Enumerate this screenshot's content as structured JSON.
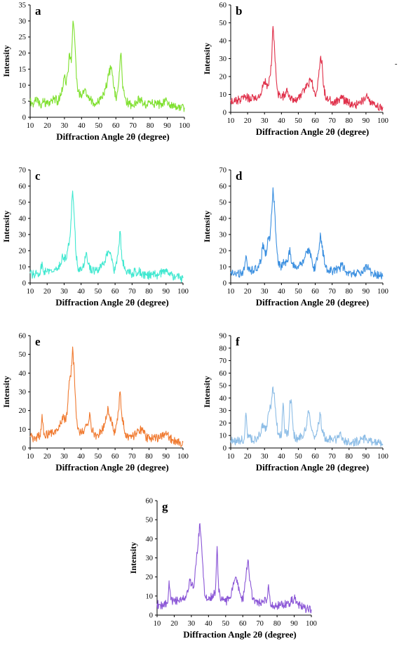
{
  "figure": {
    "side_mark": "-"
  },
  "chart_data": [
    {
      "id": "a",
      "panel_label": "a",
      "type": "line",
      "color": "#7fe02f",
      "xlabel": "Diffraction Angle 2θ (degree)",
      "ylabel": "Intensity",
      "xlim": [
        10,
        100
      ],
      "ylim": [
        0,
        35
      ],
      "xticks": [
        10,
        20,
        30,
        40,
        50,
        60,
        70,
        80,
        90,
        100
      ],
      "yticks": [
        0,
        5,
        10,
        15,
        20,
        25,
        30,
        35
      ],
      "x": [
        10,
        12,
        14,
        16,
        18,
        20,
        22,
        24,
        26,
        28,
        29,
        30,
        31,
        32,
        33,
        34,
        35,
        36,
        37,
        38,
        40,
        42,
        44,
        46,
        48,
        50,
        52,
        54,
        55,
        56,
        57,
        58,
        59,
        60,
        61,
        62,
        63,
        64,
        66,
        68,
        70,
        72,
        74,
        76,
        78,
        80,
        82,
        84,
        86,
        88,
        90,
        92,
        94,
        96,
        98,
        100
      ],
      "y": [
        5,
        4,
        6,
        4,
        5,
        4,
        5,
        6,
        5,
        7,
        9,
        13,
        10,
        14,
        20,
        17,
        30,
        24,
        12,
        8,
        6,
        9,
        6,
        5,
        4,
        5,
        6,
        9,
        11,
        14,
        15,
        13,
        9,
        6,
        8,
        14,
        20,
        9,
        5,
        4,
        4,
        5,
        6,
        4,
        4,
        5,
        4,
        4,
        4,
        5,
        5,
        4,
        4,
        3,
        3,
        3
      ]
    },
    {
      "id": "b",
      "panel_label": "b",
      "type": "line",
      "color": "#e0304a",
      "xlabel": "Diffraction Angle 2θ (degree)",
      "ylabel": "Intensity",
      "xlim": [
        10,
        100
      ],
      "ylim": [
        0,
        60
      ],
      "xticks": [
        10,
        20,
        30,
        40,
        50,
        60,
        70,
        80,
        90,
        100
      ],
      "yticks": [
        0,
        10,
        20,
        30,
        40,
        50,
        60
      ],
      "x": [
        10,
        12,
        14,
        16,
        18,
        20,
        22,
        24,
        26,
        28,
        29,
        30,
        31,
        32,
        33,
        34,
        35,
        36,
        37,
        38,
        40,
        42,
        43,
        44,
        46,
        48,
        50,
        52,
        54,
        55,
        56,
        57,
        58,
        59,
        60,
        61,
        62,
        63,
        64,
        65,
        66,
        68,
        70,
        72,
        74,
        76,
        78,
        80,
        82,
        84,
        86,
        88,
        89,
        90,
        92,
        94,
        96,
        98,
        100
      ],
      "y": [
        7,
        6,
        7,
        6,
        10,
        8,
        7,
        9,
        8,
        10,
        14,
        17,
        16,
        15,
        20,
        26,
        48,
        34,
        18,
        10,
        8,
        10,
        13,
        10,
        8,
        7,
        8,
        10,
        14,
        16,
        15,
        18,
        18,
        12,
        9,
        12,
        20,
        30,
        29,
        14,
        9,
        7,
        6,
        6,
        7,
        8,
        6,
        5,
        5,
        4,
        5,
        6,
        8,
        9,
        6,
        4,
        4,
        3,
        3
      ]
    },
    {
      "id": "c",
      "panel_label": "c",
      "type": "line",
      "color": "#40e8d0",
      "xlabel": "Diffraction Angle 2θ (degree)",
      "ylabel": "Intensity",
      "xlim": [
        10,
        100
      ],
      "ylim": [
        0,
        70
      ],
      "xticks": [
        10,
        20,
        30,
        40,
        50,
        60,
        70,
        80,
        90,
        100
      ],
      "yticks": [
        0,
        10,
        20,
        30,
        40,
        50,
        60,
        70
      ],
      "x": [
        10,
        12,
        14,
        16,
        17,
        18,
        20,
        22,
        24,
        26,
        28,
        29,
        30,
        31,
        32,
        33,
        34,
        35,
        36,
        37,
        38,
        40,
        42,
        43,
        44,
        46,
        48,
        50,
        52,
        54,
        55,
        56,
        57,
        58,
        59,
        60,
        61,
        62,
        63,
        64,
        66,
        68,
        70,
        72,
        74,
        76,
        78,
        80,
        82,
        84,
        86,
        88,
        89,
        90,
        92,
        94,
        96,
        98,
        100
      ],
      "y": [
        6,
        5,
        6,
        6,
        13,
        7,
        7,
        8,
        7,
        9,
        12,
        18,
        16,
        14,
        20,
        24,
        38,
        57,
        40,
        18,
        10,
        8,
        12,
        19,
        12,
        8,
        7,
        8,
        10,
        13,
        17,
        20,
        18,
        14,
        9,
        8,
        12,
        22,
        32,
        15,
        8,
        6,
        6,
        7,
        7,
        6,
        5,
        5,
        5,
        5,
        5,
        7,
        8,
        7,
        5,
        4,
        4,
        3,
        3
      ]
    },
    {
      "id": "d",
      "panel_label": "d",
      "type": "line",
      "color": "#3a8fe0",
      "xlabel": "Diffraction Angle 2θ (degree)",
      "ylabel": "Intensity",
      "xlim": [
        10,
        100
      ],
      "ylim": [
        0,
        70
      ],
      "xticks": [
        10,
        20,
        30,
        40,
        50,
        60,
        70,
        80,
        90,
        100
      ],
      "yticks": [
        0,
        10,
        20,
        30,
        40,
        50,
        60,
        70
      ],
      "x": [
        10,
        12,
        14,
        16,
        18,
        19,
        20,
        22,
        24,
        26,
        28,
        29,
        30,
        31,
        32,
        33,
        34,
        35,
        36,
        37,
        38,
        40,
        42,
        44,
        45,
        46,
        48,
        50,
        52,
        54,
        55,
        56,
        57,
        58,
        59,
        60,
        61,
        62,
        63,
        64,
        66,
        68,
        70,
        72,
        74,
        76,
        78,
        80,
        82,
        84,
        86,
        88,
        90,
        92,
        94,
        96,
        98,
        100
      ],
      "y": [
        6,
        5,
        6,
        6,
        8,
        17,
        8,
        8,
        8,
        10,
        14,
        25,
        20,
        17,
        28,
        26,
        42,
        59,
        45,
        25,
        13,
        10,
        13,
        14,
        22,
        12,
        9,
        9,
        12,
        16,
        19,
        21,
        19,
        15,
        10,
        9,
        15,
        20,
        31,
        22,
        10,
        8,
        7,
        8,
        9,
        11,
        7,
        6,
        6,
        6,
        6,
        7,
        10,
        8,
        6,
        5,
        5,
        4
      ]
    },
    {
      "id": "e",
      "panel_label": "e",
      "type": "line",
      "color": "#f07a30",
      "xlabel": "Diffraction Angle 2θ (degree)",
      "ylabel": "Intensity",
      "xlim": [
        10,
        100
      ],
      "ylim": [
        0,
        60
      ],
      "xticks": [
        10,
        20,
        30,
        40,
        50,
        60,
        70,
        80,
        90,
        100
      ],
      "yticks": [
        0,
        10,
        20,
        30,
        40,
        50,
        60
      ],
      "x": [
        10,
        12,
        14,
        16,
        17,
        18,
        20,
        22,
        24,
        26,
        28,
        29,
        30,
        31,
        32,
        33,
        34,
        35,
        36,
        37,
        38,
        40,
        42,
        44,
        45,
        46,
        48,
        50,
        52,
        54,
        55,
        56,
        57,
        58,
        59,
        60,
        61,
        62,
        63,
        64,
        66,
        68,
        70,
        72,
        74,
        76,
        78,
        80,
        82,
        84,
        86,
        88,
        89,
        90,
        92,
        94,
        96,
        98,
        100
      ],
      "y": [
        6,
        5,
        6,
        6,
        18,
        7,
        7,
        8,
        7,
        9,
        13,
        17,
        16,
        14,
        22,
        36,
        38,
        54,
        40,
        20,
        10,
        8,
        10,
        12,
        19,
        10,
        7,
        7,
        9,
        13,
        17,
        21,
        16,
        14,
        9,
        8,
        13,
        20,
        30,
        17,
        8,
        6,
        6,
        7,
        9,
        10,
        6,
        5,
        5,
        5,
        5,
        6,
        8,
        9,
        6,
        4,
        4,
        3,
        3
      ]
    },
    {
      "id": "f",
      "panel_label": "f",
      "type": "line",
      "color": "#8dbde6",
      "xlabel": "Diffraction Angle 2θ (degree)",
      "ylabel": "Intensity",
      "xlim": [
        10,
        100
      ],
      "ylim": [
        0,
        90
      ],
      "xticks": [
        10,
        20,
        30,
        40,
        50,
        60,
        70,
        80,
        90,
        100
      ],
      "yticks": [
        0,
        10,
        20,
        30,
        40,
        50,
        60,
        70,
        80,
        90
      ],
      "x": [
        10,
        12,
        14,
        16,
        18,
        19,
        20,
        22,
        24,
        26,
        28,
        29,
        30,
        31,
        32,
        33,
        34,
        35,
        36,
        37,
        38,
        40,
        41,
        42,
        44,
        45,
        46,
        47,
        48,
        50,
        52,
        54,
        55,
        56,
        57,
        58,
        59,
        60,
        61,
        62,
        63,
        64,
        66,
        68,
        70,
        72,
        74,
        75,
        76,
        78,
        80,
        82,
        84,
        86,
        88,
        90,
        92,
        94,
        96,
        98,
        100
      ],
      "y": [
        6,
        5,
        6,
        6,
        7,
        28,
        8,
        7,
        7,
        9,
        12,
        20,
        16,
        14,
        26,
        30,
        36,
        49,
        38,
        22,
        12,
        9,
        36,
        12,
        10,
        38,
        36,
        14,
        8,
        8,
        10,
        14,
        18,
        30,
        22,
        14,
        10,
        9,
        14,
        20,
        27,
        14,
        8,
        7,
        6,
        7,
        8,
        13,
        6,
        5,
        5,
        5,
        5,
        6,
        7,
        8,
        6,
        5,
        4,
        4,
        3
      ]
    },
    {
      "id": "g",
      "panel_label": "g",
      "type": "line",
      "color": "#8a55d6",
      "xlabel": "Diffraction Angle 2θ (degree)",
      "ylabel": "Intensity",
      "xlim": [
        10,
        100
      ],
      "ylim": [
        0,
        60
      ],
      "xticks": [
        10,
        20,
        30,
        40,
        50,
        60,
        70,
        80,
        90,
        100
      ],
      "yticks": [
        0,
        10,
        20,
        30,
        40,
        50,
        60
      ],
      "x": [
        10,
        12,
        14,
        16,
        17,
        18,
        20,
        22,
        24,
        26,
        28,
        29,
        30,
        31,
        32,
        33,
        34,
        35,
        36,
        37,
        38,
        40,
        42,
        44,
        45,
        46,
        48,
        50,
        52,
        54,
        55,
        56,
        57,
        58,
        59,
        60,
        61,
        62,
        63,
        64,
        66,
        68,
        70,
        72,
        74,
        75,
        76,
        78,
        80,
        82,
        84,
        86,
        88,
        90,
        92,
        94,
        96,
        98,
        100
      ],
      "y": [
        6,
        5,
        6,
        6,
        18,
        8,
        7,
        8,
        7,
        9,
        12,
        19,
        16,
        14,
        20,
        30,
        38,
        48,
        36,
        20,
        10,
        8,
        10,
        12,
        36,
        12,
        8,
        7,
        9,
        13,
        18,
        20,
        16,
        13,
        9,
        8,
        14,
        22,
        29,
        18,
        8,
        7,
        6,
        7,
        8,
        16,
        7,
        5,
        5,
        5,
        5,
        6,
        7,
        9,
        6,
        4,
        4,
        3,
        3
      ]
    }
  ]
}
